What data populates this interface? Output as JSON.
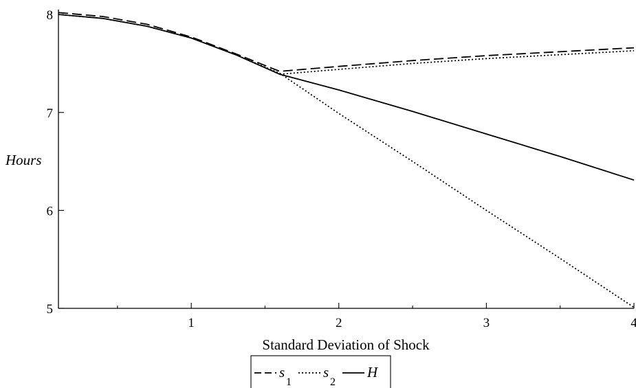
{
  "chart_data": {
    "type": "line",
    "title": "",
    "xlabel": "Standard Deviation of Shock",
    "ylabel": "Hours",
    "xlim": [
      0.1,
      4
    ],
    "ylim": [
      5,
      8.05
    ],
    "x_ticks_major": [
      1,
      2,
      3,
      4
    ],
    "x_ticks_minor": [
      0.5,
      1.5,
      2.5,
      3.5
    ],
    "y_ticks_major": [
      5,
      6,
      7,
      8
    ],
    "grid": false,
    "legend_placement": "bottom-center",
    "series": [
      {
        "name": "s",
        "name_subscript": "1",
        "style": "dashed",
        "x": [
          0.1,
          0.4,
          0.7,
          1.0,
          1.3,
          1.6,
          2.0,
          2.5,
          3.0,
          3.5,
          4.0
        ],
        "y": [
          8.02,
          7.98,
          7.9,
          7.77,
          7.6,
          7.42,
          7.47,
          7.53,
          7.58,
          7.62,
          7.66
        ]
      },
      {
        "name": "s",
        "name_subscript": "2",
        "style": "dotted",
        "x": [
          0.1,
          0.4,
          0.7,
          1.0,
          1.3,
          1.6,
          2.0,
          2.5,
          3.0,
          3.5,
          4.0
        ],
        "y": [
          8.0,
          7.96,
          7.88,
          7.76,
          7.59,
          7.4,
          6.99,
          6.5,
          6.0,
          5.51,
          5.01
        ]
      },
      {
        "name": "s",
        "name_subscript": "2",
        "style": "dotted",
        "x": [
          1.6,
          2.0,
          2.5,
          3.0,
          3.5,
          4.0
        ],
        "y": [
          7.39,
          7.44,
          7.5,
          7.55,
          7.59,
          7.63
        ]
      },
      {
        "name": "H",
        "style": "solid",
        "x": [
          0.1,
          0.4,
          0.7,
          1.0,
          1.3,
          1.6,
          2.0,
          2.5,
          3.0,
          3.5,
          4.0
        ],
        "y": [
          8.0,
          7.96,
          7.88,
          7.76,
          7.59,
          7.39,
          7.23,
          7.01,
          6.78,
          6.55,
          6.31
        ]
      }
    ],
    "legend": {
      "items": [
        {
          "text": "s",
          "subscript": "1",
          "style": "dashed"
        },
        {
          "text": "s",
          "subscript": "2",
          "style": "dotted"
        },
        {
          "text": "H",
          "subscript": "",
          "style": "solid"
        }
      ]
    }
  }
}
